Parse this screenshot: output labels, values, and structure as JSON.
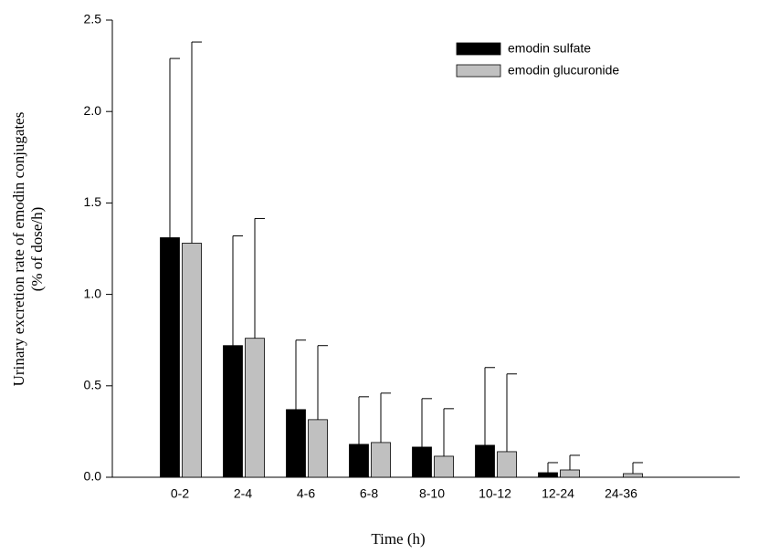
{
  "chart_data": {
    "type": "bar",
    "x_label": "Time (h)",
    "y_label": [
      "Urinary excretion rate of emodin conjugates",
      "(% of dose/h)"
    ],
    "categories": [
      "0-2",
      "2-4",
      "4-6",
      "6-8",
      "8-10",
      "10-12",
      "12-24",
      "24-36"
    ],
    "series": [
      {
        "name": "emodin sulfate",
        "color": "#000000",
        "values": [
          1.31,
          0.72,
          0.37,
          0.18,
          0.165,
          0.175,
          0.025,
          null
        ],
        "errors": [
          0.98,
          0.6,
          0.38,
          0.26,
          0.265,
          0.425,
          0.055,
          null
        ]
      },
      {
        "name": "emodin glucuronide",
        "color": "#c0c0c0",
        "values": [
          1.28,
          0.76,
          0.315,
          0.19,
          0.115,
          0.14,
          0.04,
          0.02
        ],
        "errors": [
          1.1,
          0.655,
          0.405,
          0.27,
          0.26,
          0.425,
          0.08,
          0.06
        ]
      }
    ],
    "ylim": [
      0,
      2.5
    ],
    "yticks": [
      {
        "value": 0,
        "label": "0.0"
      },
      0.5,
      {
        "value": 1,
        "label": "1.0"
      },
      1.5,
      {
        "value": 2,
        "label": "2.0"
      },
      2.5
    ],
    "legend": "upper right"
  }
}
